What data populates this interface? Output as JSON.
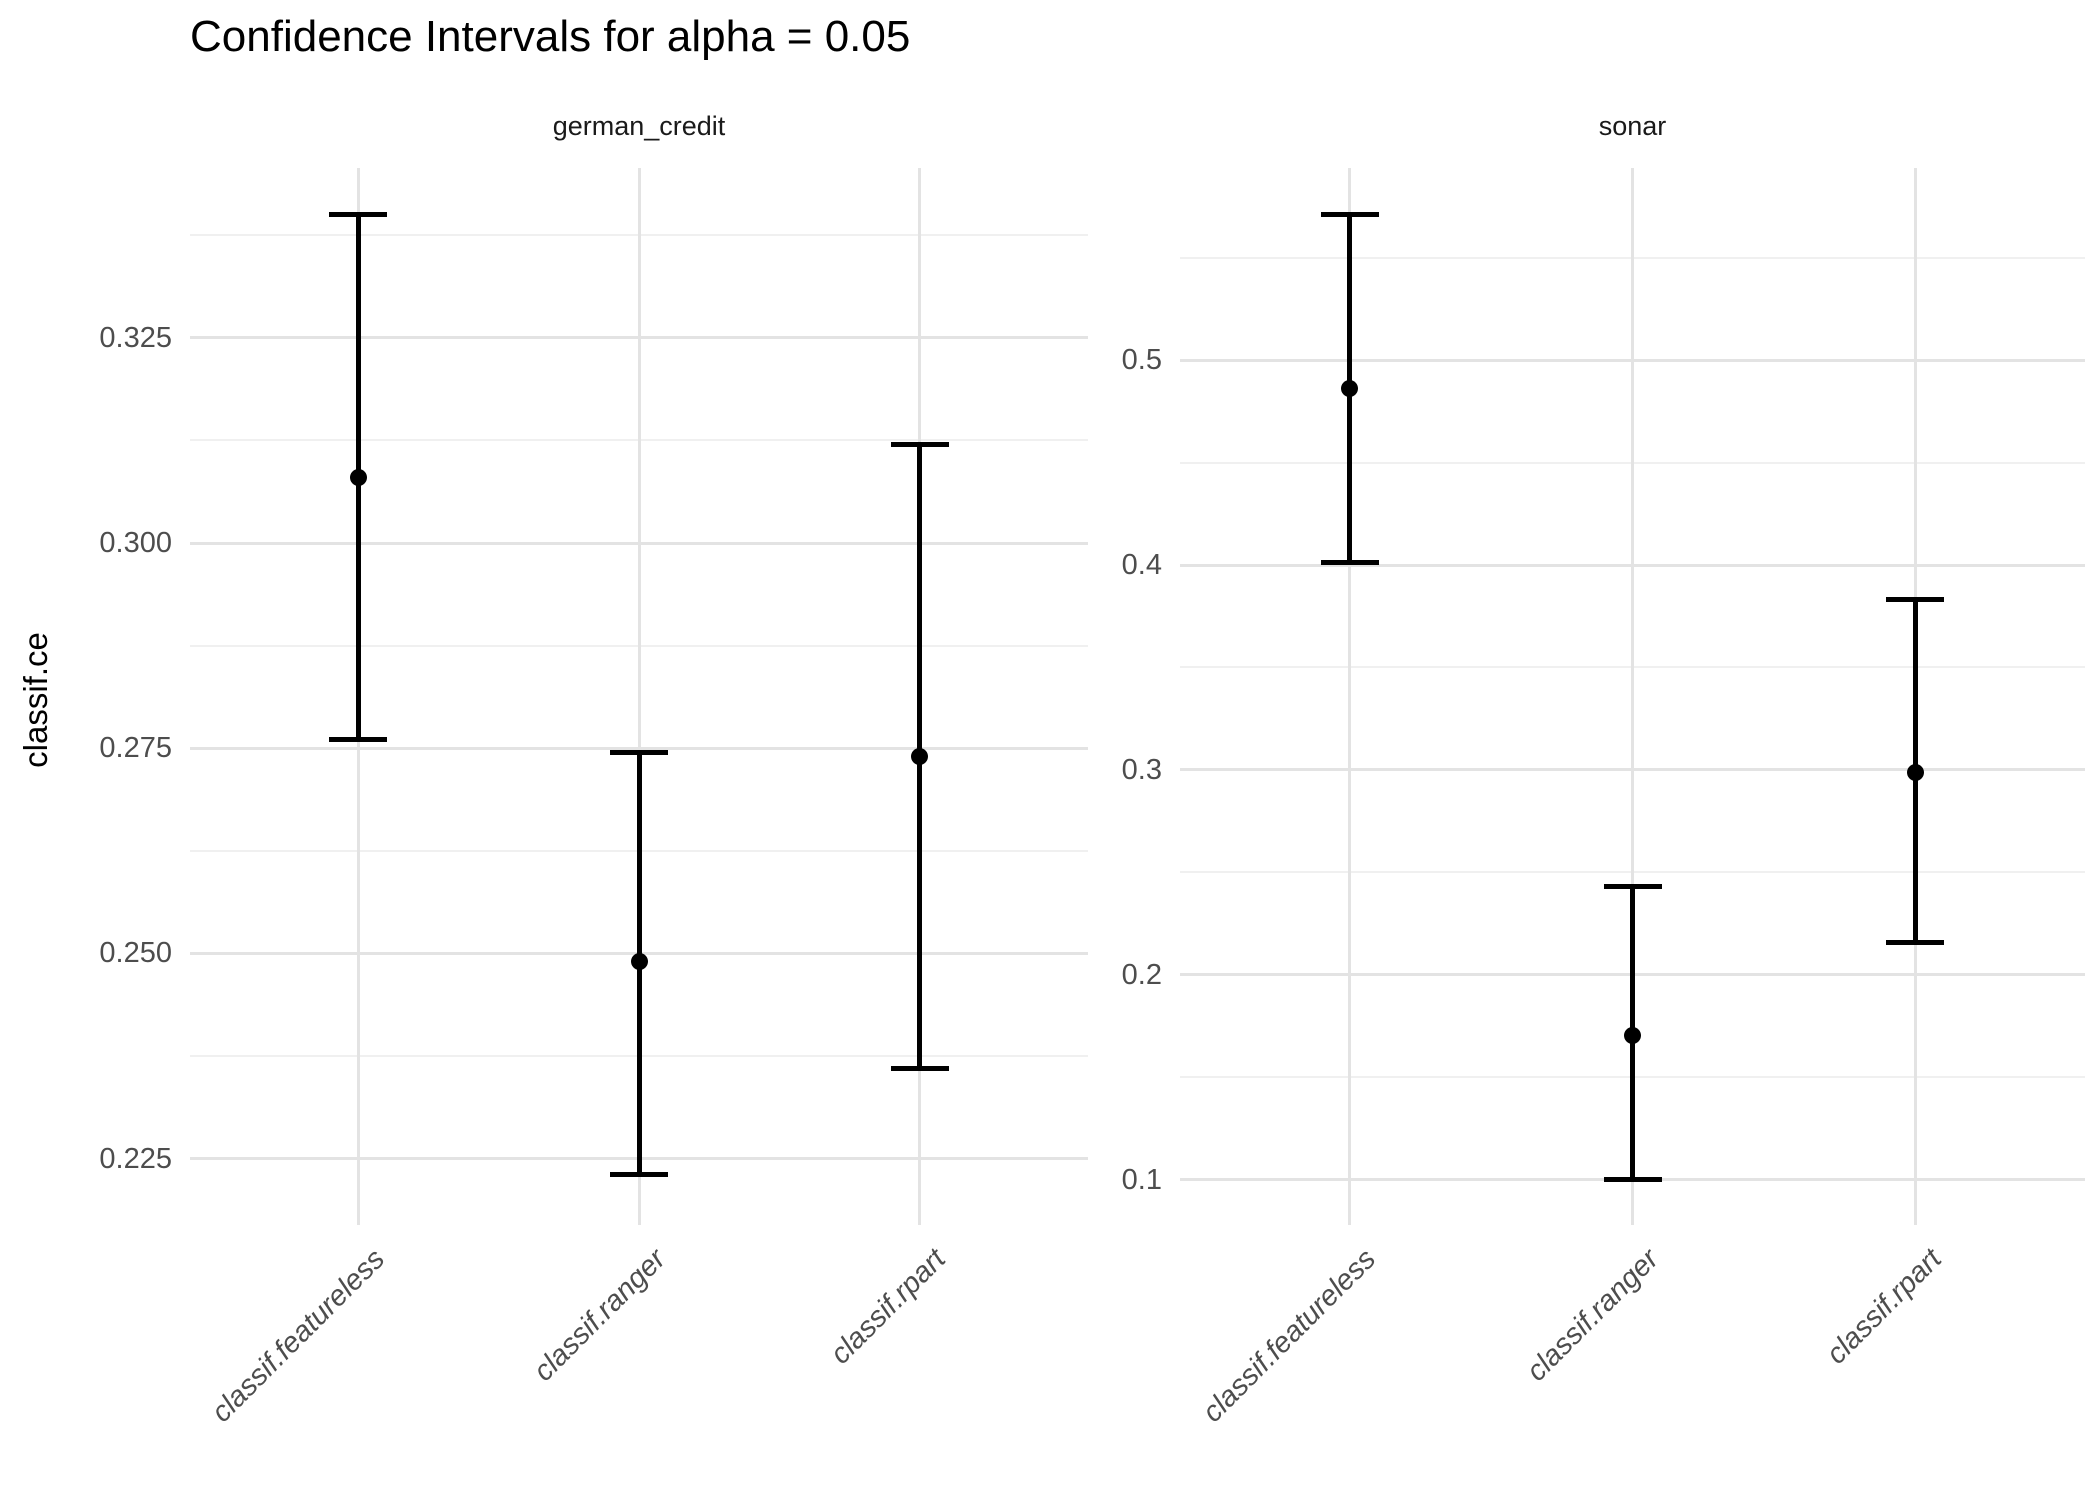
{
  "title": "Confidence Intervals for alpha = 0.05",
  "y_axis_title": "classif.ce",
  "colors": {
    "background": "#ffffff",
    "major_gridline": "#e3e3e3",
    "minor_gridline": "#f0f0f0",
    "errorbar": "#000000",
    "point": "#000000",
    "tick_label_text": "#4d4d4d",
    "strip_text": "#1a1a1a",
    "title_text": "#000000"
  },
  "chart_data": {
    "type": "scatter",
    "error_bars": true,
    "grid": true,
    "legend": "none",
    "title": "Confidence Intervals for alpha = 0.05",
    "ylabel": "classif.ce",
    "xlabel": "",
    "categories": [
      "classif.featureless",
      "classif.ranger",
      "classif.rpart"
    ],
    "facets": [
      {
        "label": "german_credit",
        "ylim": [
          0.2169,
          0.3457
        ],
        "y_major_ticks": [
          0.225,
          0.25,
          0.275,
          0.3,
          0.325
        ],
        "y_major_labels": [
          "0.225",
          "0.250",
          "0.275",
          "0.300",
          "0.325"
        ],
        "y_minor_ticks": [
          0.2375,
          0.2625,
          0.2875,
          0.3125,
          0.3375
        ],
        "series": [
          {
            "learner": "classif.featureless",
            "estimate": 0.308,
            "lower": 0.276,
            "upper": 0.34
          },
          {
            "learner": "classif.ranger",
            "estimate": 0.249,
            "lower": 0.223,
            "upper": 0.2745
          },
          {
            "learner": "classif.rpart",
            "estimate": 0.274,
            "lower": 0.236,
            "upper": 0.312
          }
        ]
      },
      {
        "label": "sonar",
        "ylim": [
          0.078,
          0.5937
        ],
        "y_major_ticks": [
          0.1,
          0.2,
          0.3,
          0.4,
          0.5
        ],
        "y_major_labels": [
          "0.1",
          "0.2",
          "0.3",
          "0.4",
          "0.5"
        ],
        "y_minor_ticks": [
          0.15,
          0.25,
          0.35,
          0.45,
          0.55
        ],
        "series": [
          {
            "learner": "classif.featureless",
            "estimate": 0.486,
            "lower": 0.401,
            "upper": 0.571
          },
          {
            "learner": "classif.ranger",
            "estimate": 0.1705,
            "lower": 0.1,
            "upper": 0.243
          },
          {
            "learner": "classif.rpart",
            "estimate": 0.299,
            "lower": 0.216,
            "upper": 0.383
          }
        ]
      }
    ]
  }
}
